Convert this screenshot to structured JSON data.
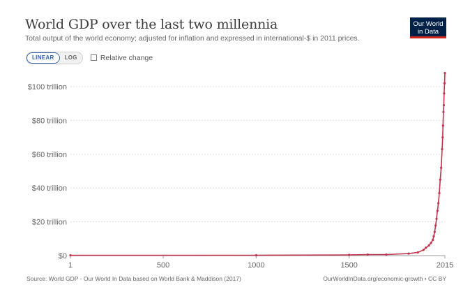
{
  "header": {
    "title": "World GDP over the last two millennia",
    "subtitle": "Total output of the world economy; adjusted for inflation and expressed in international-$ in 2011 prices.",
    "logo_line1": "Our World",
    "logo_line2": "in Data"
  },
  "controls": {
    "linear_label": "LINEAR",
    "log_label": "LOG",
    "relative_label": "Relative change"
  },
  "footer": {
    "source": "Source: World GDP - Our World In Data based on World Bank & Maddison (2017)",
    "url": "OurWorldInData.org/economic-growth • CC BY"
  },
  "colors": {
    "line": "#c0334d",
    "grid": "#dddddd",
    "brand": "#002147",
    "accent": "#3360a9"
  },
  "chart_data": {
    "type": "line",
    "title": "World GDP over the last two millennia",
    "x_ticks": [
      "1",
      "500",
      "1000",
      "1500",
      "2015"
    ],
    "x_tick_values": [
      1,
      500,
      1000,
      1500,
      2015
    ],
    "y_ticks": [
      "$0",
      "$20 trillion",
      "$40 trillion",
      "$60 trillion",
      "$80 trillion",
      "$100 trillion"
    ],
    "y_tick_values": [
      0,
      20,
      40,
      60,
      80,
      100
    ],
    "xlim": [
      1,
      2015
    ],
    "ylim": [
      0,
      100
    ],
    "y_unit": "trillion international-$ (2011 prices)",
    "grid": "horizontal dotted",
    "series": [
      {
        "values_x": [
          1,
          1000,
          1500,
          1600,
          1700,
          1820,
          1870,
          1900,
          1913,
          1929,
          1940,
          1950,
          1955,
          1960,
          1965,
          1970,
          1975,
          1980,
          1985,
          1990,
          1995,
          2000,
          2003,
          2005,
          2007,
          2009,
          2011,
          2013,
          2015
        ],
        "values_y": [
          0.18,
          0.21,
          0.43,
          0.6,
          0.64,
          1.2,
          1.9,
          3.4,
          4.7,
          6.0,
          7.5,
          9.3,
          11.5,
          14.0,
          17.8,
          21.8,
          26.5,
          31.0,
          37.0,
          45.0,
          52.0,
          63.0,
          70.0,
          77.0,
          85.0,
          89.0,
          96.0,
          102.0,
          108.0
        ]
      }
    ]
  }
}
